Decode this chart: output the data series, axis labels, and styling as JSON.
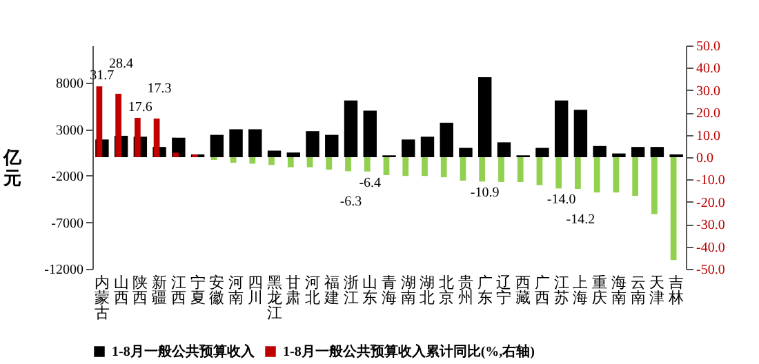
{
  "chart_data": {
    "type": "bar",
    "categories": [
      "内蒙古",
      "山西",
      "陕西",
      "新疆",
      "江西",
      "宁夏",
      "安徽",
      "河南",
      "四川",
      "黑龙江",
      "甘肃",
      "河北",
      "福建",
      "浙江",
      "山东",
      "青海",
      "湖南",
      "湖北",
      "北京",
      "贵州",
      "广东",
      "辽宁",
      "西藏",
      "广西",
      "江苏",
      "上海",
      "重庆",
      "海南",
      "云南",
      "天津",
      "吉林"
    ],
    "ylabel": "亿元",
    "series": [
      {
        "name": "1-8月一般公共预算收入",
        "color": "#000000",
        "values": [
          1900,
          2300,
          2200,
          1100,
          2100,
          300,
          2400,
          3000,
          3000,
          700,
          500,
          2800,
          2400,
          6100,
          5000,
          200,
          1900,
          2200,
          3700,
          1000,
          8600,
          1600,
          200,
          1000,
          6100,
          5100,
          1200,
          400,
          1100,
          1100,
          300
        ]
      },
      {
        "name": "1-8月一般公共预算收入累计同比(%,右轴)",
        "axis": "y2",
        "color": "#c00000",
        "colors": [
          "#c00000",
          "#c00000",
          "#c00000",
          "#c00000",
          "#c00000",
          "#c00000",
          "#92d050",
          "#92d050",
          "#92d050",
          "#92d050",
          "#92d050",
          "#92d050",
          "#92d050",
          "#92d050",
          "#92d050",
          "#92d050",
          "#92d050",
          "#92d050",
          "#92d050",
          "#92d050",
          "#92d050",
          "#92d050",
          "#92d050",
          "#92d050",
          "#92d050",
          "#92d050",
          "#92d050",
          "#92d050",
          "#92d050",
          "#92d050",
          "#92d050"
        ],
        "values": [
          31.7,
          28.4,
          17.6,
          17.3,
          2.0,
          1.2,
          -1.2,
          -2.5,
          -2.9,
          -3.5,
          -4.5,
          -4.5,
          -5.6,
          -6.3,
          -6.4,
          -8.0,
          -8.4,
          -8.4,
          -9.0,
          -10.5,
          -10.9,
          -11.1,
          -11.1,
          -12.5,
          -14.0,
          -14.2,
          -15.8,
          -15.8,
          -17.3,
          -25.5,
          -46.1
        ],
        "value_labels": [
          "31.7",
          "28.4",
          "17.6",
          "17.3",
          null,
          null,
          null,
          null,
          null,
          null,
          null,
          null,
          null,
          "-6.3",
          "-6.4",
          null,
          null,
          null,
          null,
          null,
          "-10.9",
          null,
          null,
          null,
          "-14.0",
          "-14.2",
          null,
          null,
          null,
          null,
          null
        ]
      }
    ],
    "ylim": [
      -12000,
      12000
    ],
    "yticks": [
      -12000,
      -7000,
      -2000,
      3000,
      8000
    ],
    "y2lim": [
      -50,
      50
    ],
    "y2ticks": [
      {
        "value": -50,
        "label": "-50.0"
      },
      {
        "value": -40,
        "label": "-40.0"
      },
      {
        "value": -30,
        "label": "-30.0"
      },
      {
        "value": -20,
        "label": "-20.0"
      },
      {
        "value": -10,
        "label": "-10.0"
      },
      {
        "value": 0,
        "label": "0.0"
      },
      {
        "value": 10,
        "label": "10.0"
      },
      {
        "value": 20,
        "label": "20.0"
      },
      {
        "value": 30,
        "label": "30.0"
      },
      {
        "value": 40,
        "label": "40.0"
      },
      {
        "value": 50,
        "label": "50.0"
      }
    ],
    "legend": "bottom",
    "grid": false
  }
}
